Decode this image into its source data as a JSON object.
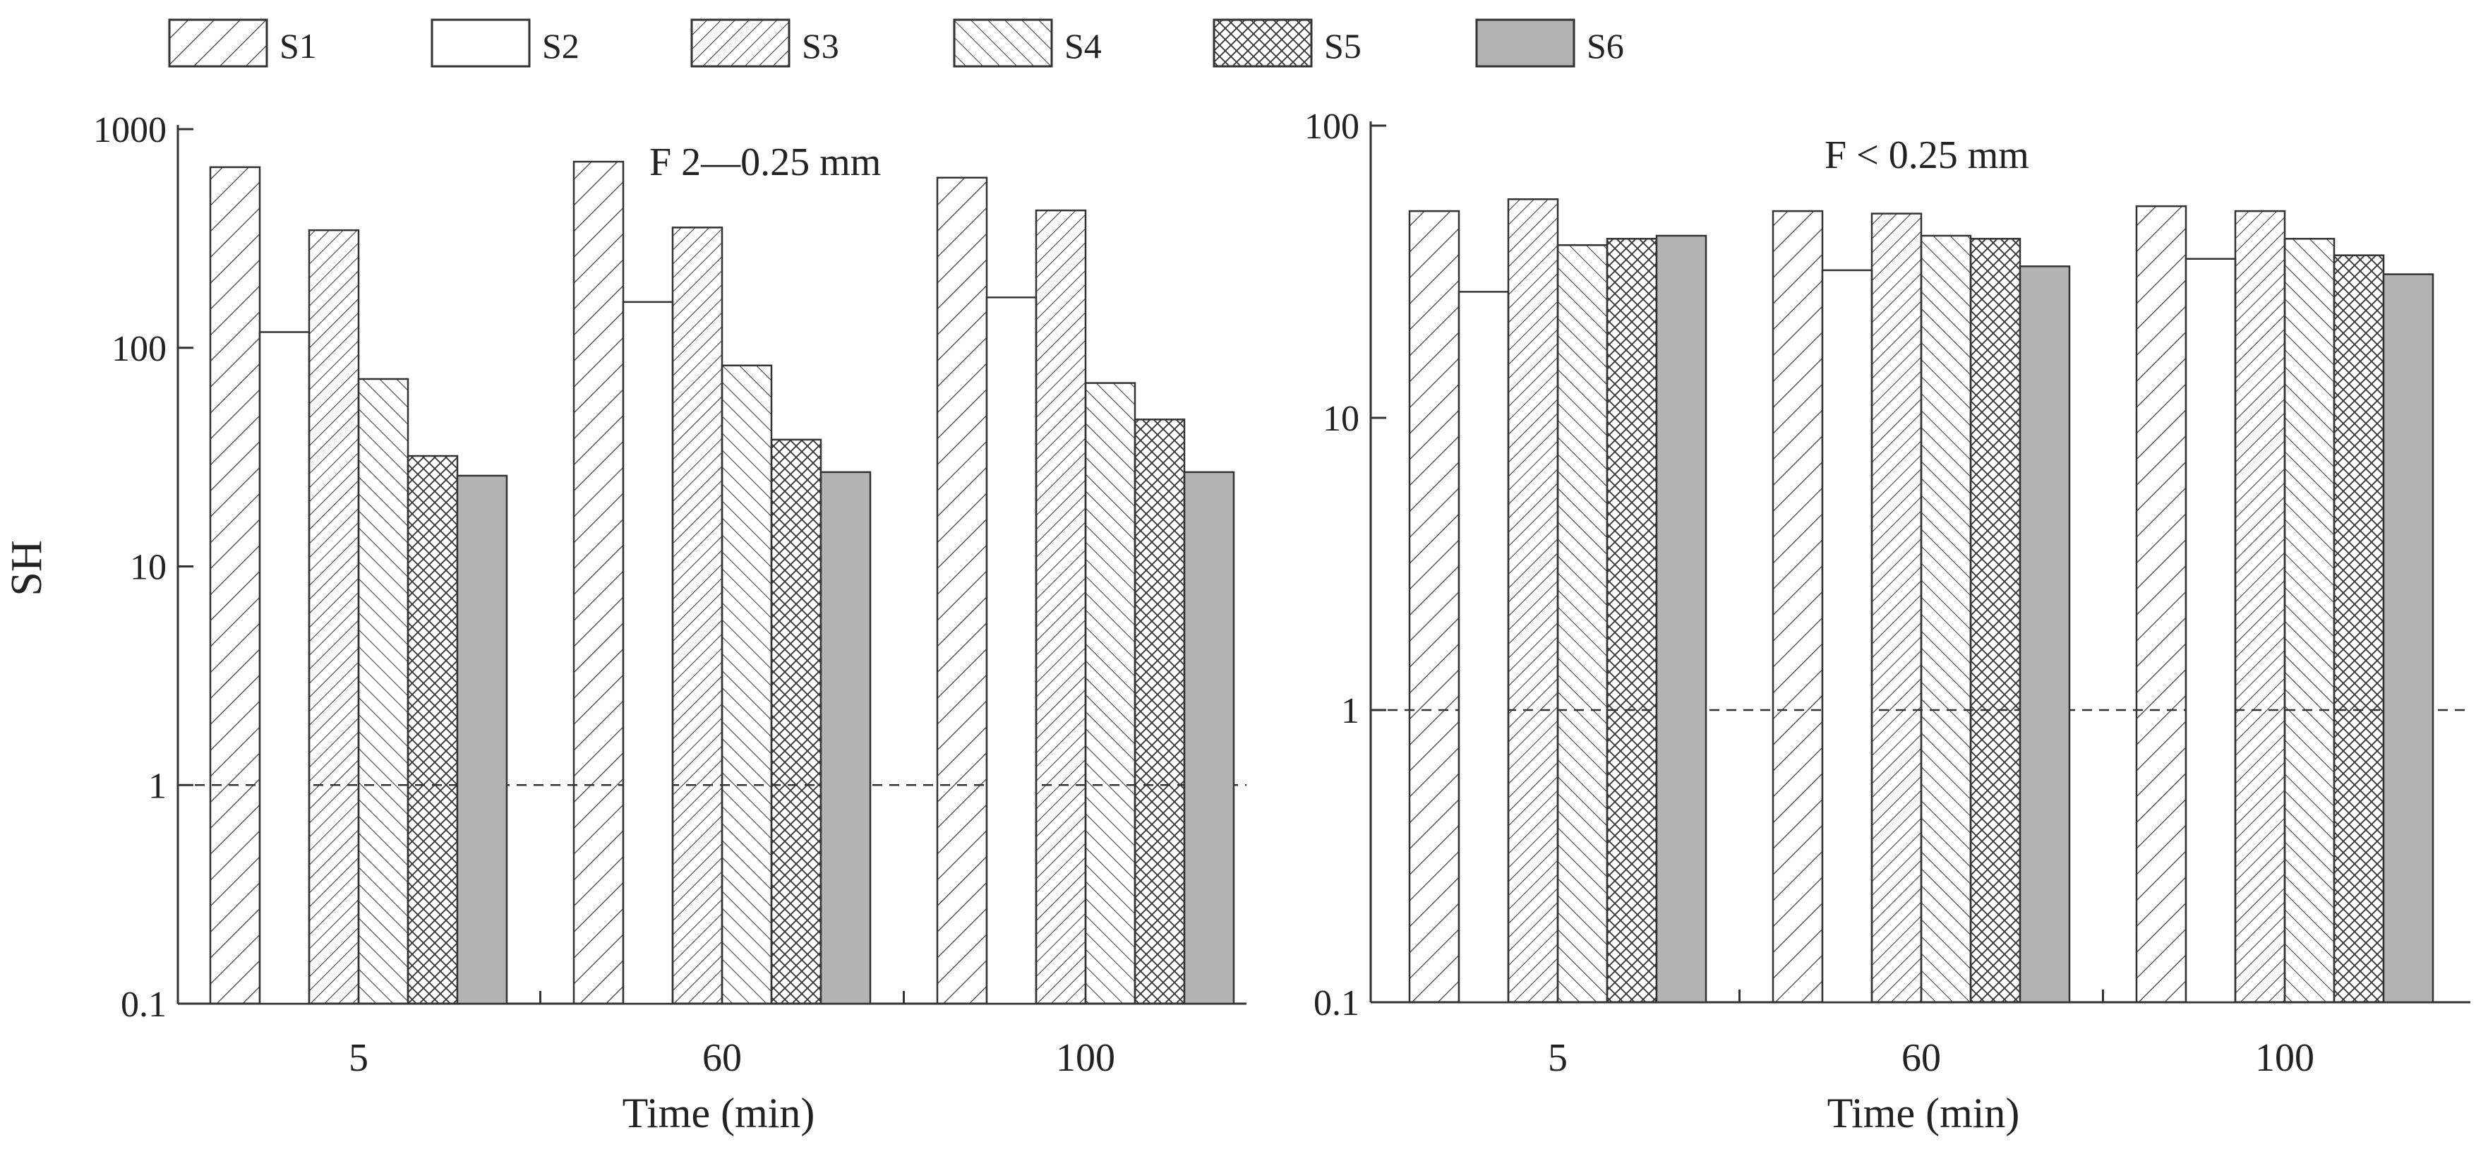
{
  "legend": {
    "entries": [
      {
        "name": "S1",
        "pattern": "hatch-wide"
      },
      {
        "name": "S2",
        "pattern": "none"
      },
      {
        "name": "S3",
        "pattern": "hatch-dense"
      },
      {
        "name": "S4",
        "pattern": "backhatch"
      },
      {
        "name": "S5",
        "pattern": "crosshatch"
      },
      {
        "name": "S6",
        "pattern": "solid-gray"
      }
    ]
  },
  "colors": {
    "axis": "#333333",
    "bar_stroke": "#333333",
    "solid_fill": "#b3b3b3",
    "hatch": "#333333"
  },
  "chart_data": [
    {
      "type": "bar",
      "title": "F 2—0.25 mm",
      "xlabel": "Time (min)",
      "ylabel": "SH",
      "yscale": "log",
      "ylim": [
        0.1,
        1000
      ],
      "yticks": [
        "0.1",
        "1",
        "10",
        "100",
        "1000"
      ],
      "categories": [
        "5",
        "60",
        "100"
      ],
      "reference_line": 1,
      "series": [
        {
          "name": "S1",
          "values": [
            670,
            710,
            600
          ]
        },
        {
          "name": "S2",
          "values": [
            118,
            162,
            170
          ]
        },
        {
          "name": "S3",
          "values": [
            345,
            355,
            425
          ]
        },
        {
          "name": "S4",
          "values": [
            72,
            83,
            69
          ]
        },
        {
          "name": "S5",
          "values": [
            32,
            38,
            47
          ]
        },
        {
          "name": "S6",
          "values": [
            26,
            27,
            27
          ]
        }
      ]
    },
    {
      "type": "bar",
      "title": "F < 0.25 mm",
      "xlabel": "Time (min)",
      "ylabel": "",
      "yscale": "log",
      "ylim": [
        0.1,
        100
      ],
      "yticks": [
        "0.1",
        "1",
        "10",
        "100"
      ],
      "categories": [
        "5",
        "60",
        "100"
      ],
      "reference_line": 1,
      "series": [
        {
          "name": "S1",
          "values": [
            51,
            51,
            53
          ]
        },
        {
          "name": "S2",
          "values": [
            27,
            32,
            35
          ]
        },
        {
          "name": "S3",
          "values": [
            56,
            50,
            51
          ]
        },
        {
          "name": "S4",
          "values": [
            39,
            42,
            41
          ]
        },
        {
          "name": "S5",
          "values": [
            41,
            41,
            36
          ]
        },
        {
          "name": "S6",
          "values": [
            42,
            33,
            31
          ]
        }
      ]
    }
  ]
}
